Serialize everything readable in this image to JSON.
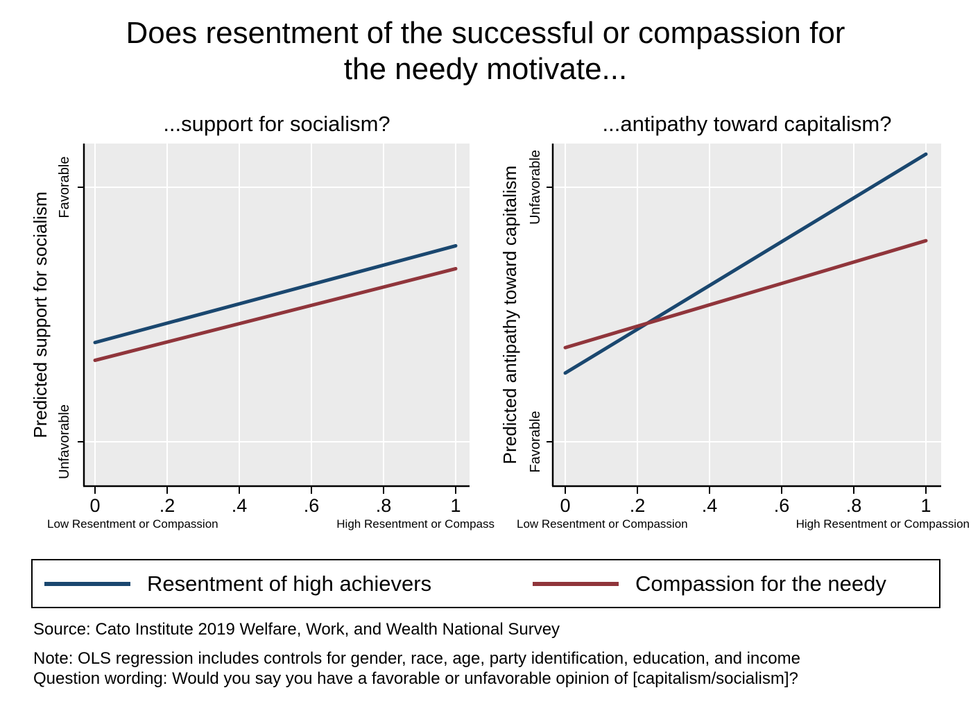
{
  "figure": {
    "title_lines": [
      "Does resentment of the successful or compassion for",
      "the needy motivate..."
    ],
    "colors": {
      "navy": "#1a476f",
      "maroon": "#90353b",
      "plot_bg": "#ebebeb",
      "gridline": "#ffffff",
      "axis": "#000000"
    }
  },
  "chart_data": [
    {
      "type": "line",
      "title": "...support for socialism?",
      "ylabel": "Predicted support for socialism",
      "ytick_top": "Favorable",
      "ytick_bottom": "Unfavorable",
      "xticks": [
        "0",
        ".2",
        ".4",
        ".6",
        ".8",
        "1"
      ],
      "xcaption_low": "Low Resentment or Compassion",
      "xcaption_high": "High Resentment or Compass",
      "x_range": [
        0,
        1
      ],
      "grid": true,
      "y_axis_note": "y values are fractions of the distance from the bottom tick (Unfavorable = 0) to the top tick (Favorable = 1)",
      "series": [
        {
          "name": "Resentment of high achievers",
          "color": "#1a476f",
          "x": [
            0,
            1
          ],
          "y": [
            0.39,
            0.77
          ]
        },
        {
          "name": "Compassion for the needy",
          "color": "#90353b",
          "x": [
            0,
            1
          ],
          "y": [
            0.32,
            0.68
          ]
        }
      ]
    },
    {
      "type": "line",
      "title": "...antipathy toward capitalism?",
      "ylabel": "Predicted antipathy toward capitalism",
      "ytick_top": "Unfavorable",
      "ytick_bottom": "Favorable",
      "xticks": [
        "0",
        ".2",
        ".4",
        ".6",
        ".8",
        "1"
      ],
      "xcaption_low": "Low Resentment or Compassion",
      "xcaption_high": "High Resentment or Compassion",
      "x_range": [
        0,
        1
      ],
      "grid": true,
      "y_axis_note": "y values are fractions of the distance from the bottom tick (Favorable = 0) to the top tick (Unfavorable = 1)",
      "series": [
        {
          "name": "Resentment of high achievers",
          "color": "#1a476f",
          "x": [
            0,
            1
          ],
          "y": [
            0.27,
            1.13
          ]
        },
        {
          "name": "Compassion for the needy",
          "color": "#90353b",
          "x": [
            0,
            1
          ],
          "y": [
            0.37,
            0.79
          ]
        }
      ]
    }
  ],
  "legend": {
    "entries": [
      {
        "label": "Resentment of high achievers",
        "color": "#1a476f"
      },
      {
        "label": "Compassion for the needy",
        "color": "#90353b"
      }
    ]
  },
  "footer": {
    "source": "Source: Cato Institute 2019 Welfare, Work, and Wealth National Survey",
    "note": "Note: OLS regression includes controls for gender, race, age, party identification, education, and income",
    "question": "Question wording: Would you say you have a favorable or unfavorable opinion of [capitalism/socialism]?"
  }
}
